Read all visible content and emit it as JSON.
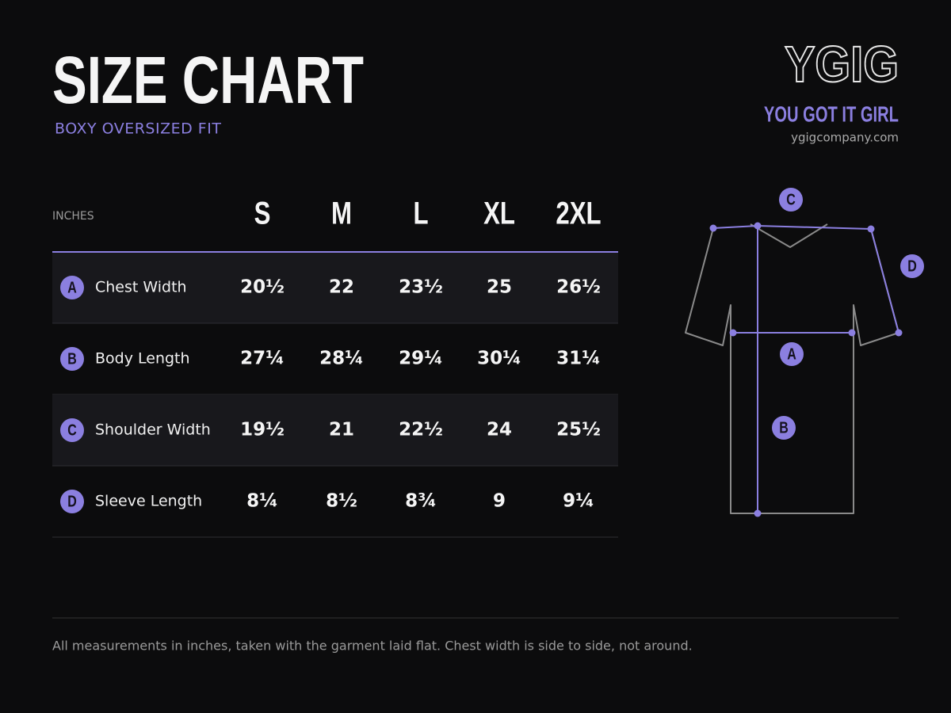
{
  "header": {
    "title": "SIZE CHART",
    "subtitle": "BOXY OVERSIZED FIT"
  },
  "brand": {
    "logo": "YGIG",
    "tagline": "YOU GOT IT GIRL",
    "website": "ygigcompany.com"
  },
  "table": {
    "unit_label": "INCHES",
    "columns": [
      "S",
      "M",
      "L",
      "XL",
      "2XL"
    ],
    "rows": [
      {
        "key": "A",
        "label": "Chest Width",
        "values": [
          "20½",
          "22",
          "23½",
          "25",
          "26½"
        ]
      },
      {
        "key": "B",
        "label": "Body Length",
        "values": [
          "27¼",
          "28¼",
          "29¼",
          "30¼",
          "31¼"
        ]
      },
      {
        "key": "C",
        "label": "Shoulder Width",
        "values": [
          "19½",
          "21",
          "22½",
          "24",
          "25½"
        ]
      },
      {
        "key": "D",
        "label": "Sleeve Length",
        "values": [
          "8¼",
          "8½",
          "8¾",
          "9",
          "9¼"
        ]
      }
    ]
  },
  "footnote": "All measurements in inches, taken with the garment laid flat. Chest width is side to side, not around."
}
